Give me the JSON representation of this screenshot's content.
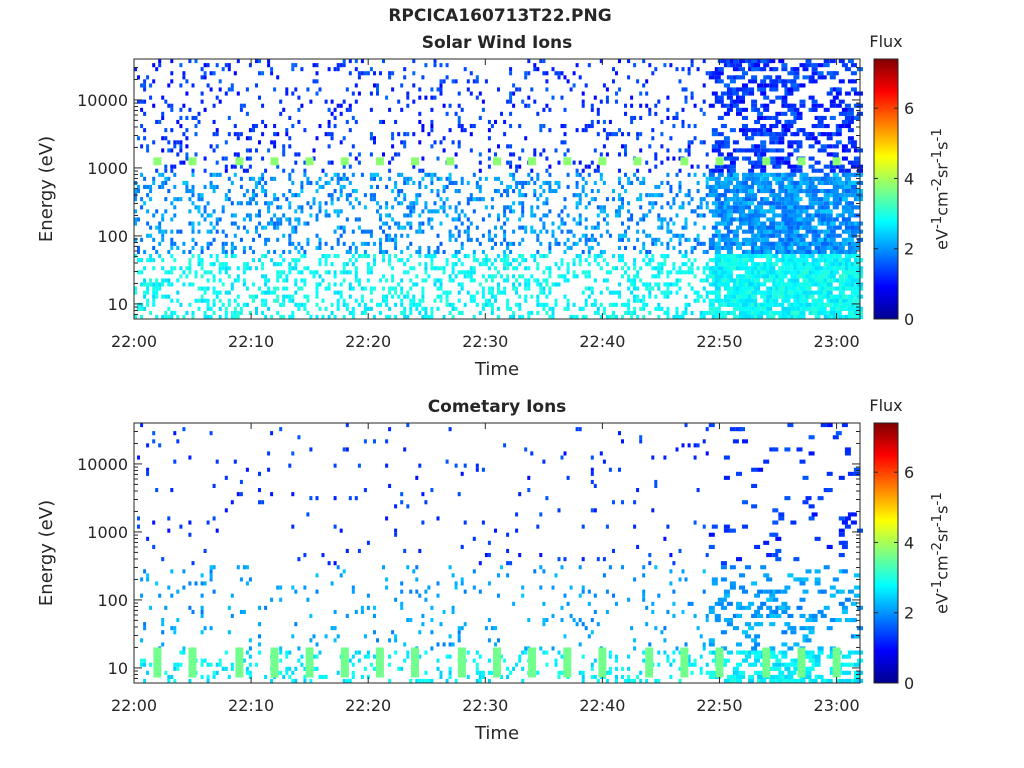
{
  "figure": {
    "title": "RPCICA160713T22.PNG"
  },
  "colorbar": {
    "label_html": "eV<sup>-1</sup>cm<sup>-2</sup>sr<sup>-1</sup>s<sup>-1</sup>",
    "title": "Flux",
    "ticks": [
      0,
      2,
      4,
      6
    ],
    "range": [
      0,
      7.4
    ],
    "colormap": "jet"
  },
  "chart_data": [
    {
      "type": "heatmap",
      "title": "Solar Wind Ions",
      "xlabel": "Time",
      "ylabel": "Energy (eV)",
      "yscale": "log",
      "ylim": [
        6,
        40000
      ],
      "xlim": [
        "22:00",
        "23:02"
      ],
      "xticks": [
        "22:00",
        "22:10",
        "22:20",
        "22:30",
        "22:40",
        "22:50",
        "23:00"
      ],
      "yticks": [
        10,
        100,
        1000,
        10000
      ],
      "bright_band_energy": 1250,
      "bright_band_times": [
        "22:02",
        "22:05",
        "22:09",
        "22:12",
        "22:15",
        "22:18",
        "22:21",
        "22:24",
        "22:27",
        "22:31",
        "22:34",
        "22:37",
        "22:40",
        "22:43",
        "22:47",
        "22:50",
        "22:54",
        "22:57",
        "23:00"
      ],
      "bright_band_flux": 3.8
    },
    {
      "type": "heatmap",
      "title": "Cometary Ions",
      "xlabel": "Time",
      "ylabel": "Energy (eV)",
      "yscale": "log",
      "ylim": [
        6,
        40000
      ],
      "xlim": [
        "22:00",
        "23:02"
      ],
      "xticks": [
        "22:00",
        "22:10",
        "22:20",
        "22:30",
        "22:40",
        "22:50",
        "23:00"
      ],
      "yticks": [
        10,
        100,
        1000,
        10000
      ],
      "bright_band_energy": 12,
      "bright_band_times": [
        "22:02",
        "22:05",
        "22:09",
        "22:12",
        "22:15",
        "22:18",
        "22:21",
        "22:24",
        "22:28",
        "22:31",
        "22:34",
        "22:37",
        "22:40",
        "22:44",
        "22:47",
        "22:50",
        "22:54",
        "22:57",
        "23:00"
      ],
      "bright_band_flux": 3.6
    }
  ]
}
